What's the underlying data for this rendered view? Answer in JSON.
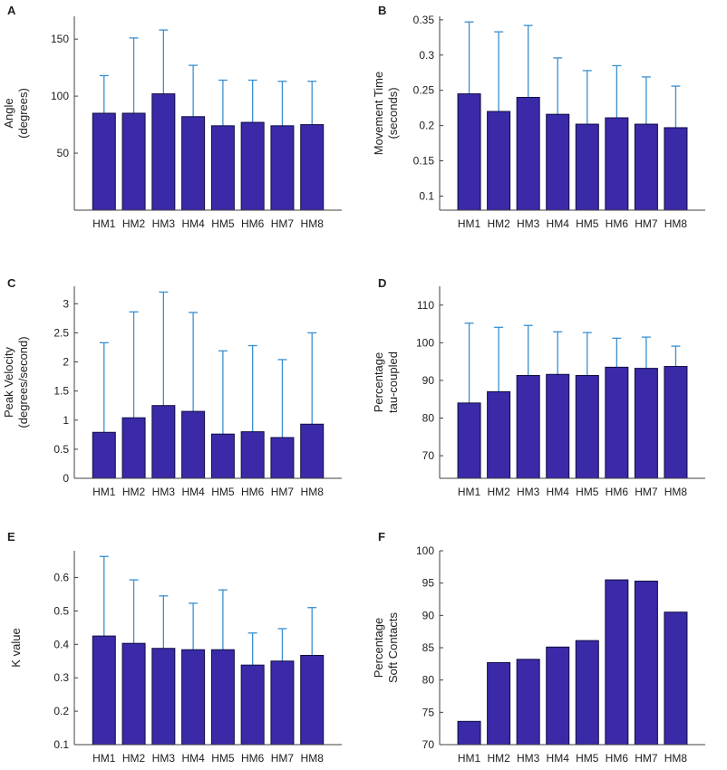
{
  "colors": {
    "bar_fill": "#3a2aa8",
    "bar_stroke": "#0d0d40",
    "error_bar": "#3a8fd0",
    "axis": "#404040",
    "text": "#202020"
  },
  "chart_data": [
    {
      "panel": "A",
      "type": "bar",
      "categories": [
        "HM1",
        "HM2",
        "HM3",
        "HM4",
        "HM5",
        "HM6",
        "HM7",
        "HM8"
      ],
      "values": [
        85,
        85,
        102,
        82,
        74,
        77,
        74,
        75
      ],
      "error_upper": [
        118,
        151,
        158,
        127,
        114,
        114,
        113,
        113
      ],
      "ylabel_lines": [
        "Angle",
        "(degrees)"
      ],
      "ylim": [
        0,
        170
      ],
      "yticks": [
        50,
        100,
        150
      ],
      "tick_labels": [
        "50",
        "100",
        "150"
      ]
    },
    {
      "panel": "B",
      "type": "bar",
      "categories": [
        "HM1",
        "HM2",
        "HM3",
        "HM4",
        "HM5",
        "HM6",
        "HM7",
        "HM8"
      ],
      "values": [
        0.245,
        0.22,
        0.24,
        0.216,
        0.202,
        0.211,
        0.202,
        0.197
      ],
      "error_upper": [
        0.347,
        0.333,
        0.342,
        0.296,
        0.278,
        0.285,
        0.269,
        0.256
      ],
      "ylabel_lines": [
        "Movement Time",
        "(seconds)"
      ],
      "ylim": [
        0.08,
        0.355
      ],
      "yticks": [
        0.1,
        0.15,
        0.2,
        0.25,
        0.3,
        0.35
      ],
      "tick_labels": [
        "0.1",
        "0.15",
        "0.2",
        "0.25",
        "0.3",
        "0.35"
      ]
    },
    {
      "panel": "C",
      "type": "bar",
      "categories": [
        "HM1",
        "HM2",
        "HM3",
        "HM4",
        "HM5",
        "HM6",
        "HM7",
        "HM8"
      ],
      "values": [
        0.79,
        1.04,
        1.25,
        1.15,
        0.76,
        0.8,
        0.7,
        0.93
      ],
      "error_upper": [
        2.33,
        2.86,
        3.2,
        2.85,
        2.19,
        2.28,
        2.04,
        2.5
      ],
      "ylabel_lines": [
        "Peak Velocity",
        "(degrees/second)"
      ],
      "ylim": [
        0,
        3.3
      ],
      "yticks": [
        0,
        0.5,
        1,
        1.5,
        2,
        2.5,
        3
      ],
      "tick_labels": [
        "0",
        "0.5",
        "1",
        "1.5",
        "2",
        "2.5",
        "3"
      ]
    },
    {
      "panel": "D",
      "type": "bar",
      "categories": [
        "HM1",
        "HM2",
        "HM3",
        "HM4",
        "HM5",
        "HM6",
        "HM7",
        "HM8"
      ],
      "values": [
        84,
        87,
        91.3,
        91.6,
        91.3,
        93.5,
        93.2,
        93.7
      ],
      "error_upper": [
        105.2,
        104.1,
        104.6,
        102.9,
        102.7,
        101.2,
        101.5,
        99.1
      ],
      "ylabel_lines": [
        "Percentage",
        "tau-coupled"
      ],
      "ylim": [
        64,
        115
      ],
      "yticks": [
        70,
        80,
        90,
        100,
        110
      ],
      "tick_labels": [
        "70",
        "80",
        "90",
        "100",
        "110"
      ]
    },
    {
      "panel": "E",
      "type": "bar",
      "categories": [
        "HM1",
        "HM2",
        "HM3",
        "HM4",
        "HM5",
        "HM6",
        "HM7",
        "HM8"
      ],
      "values": [
        0.425,
        0.403,
        0.388,
        0.384,
        0.384,
        0.338,
        0.35,
        0.367
      ],
      "error_upper": [
        0.663,
        0.593,
        0.545,
        0.523,
        0.563,
        0.434,
        0.447,
        0.51
      ],
      "ylabel_lines": [
        "K value"
      ],
      "ylim": [
        0.1,
        0.68
      ],
      "yticks": [
        0.1,
        0.2,
        0.3,
        0.4,
        0.5,
        0.6
      ],
      "tick_labels": [
        "0.1",
        "0.2",
        "0.3",
        "0.4",
        "0.5",
        "0.6"
      ]
    },
    {
      "panel": "F",
      "type": "bar",
      "categories": [
        "HM1",
        "HM2",
        "HM3",
        "HM4",
        "HM5",
        "HM6",
        "HM7",
        "HM8"
      ],
      "values": [
        73.6,
        82.7,
        83.2,
        85.1,
        86.1,
        95.5,
        95.3,
        90.5
      ],
      "error_upper": [],
      "ylabel_lines": [
        "Percentage",
        "Soft Contacts"
      ],
      "ylim": [
        70,
        100
      ],
      "yticks": [
        70,
        75,
        80,
        85,
        90,
        95,
        100
      ],
      "tick_labels": [
        "70",
        "75",
        "80",
        "85",
        "90",
        "95",
        "100"
      ]
    }
  ]
}
